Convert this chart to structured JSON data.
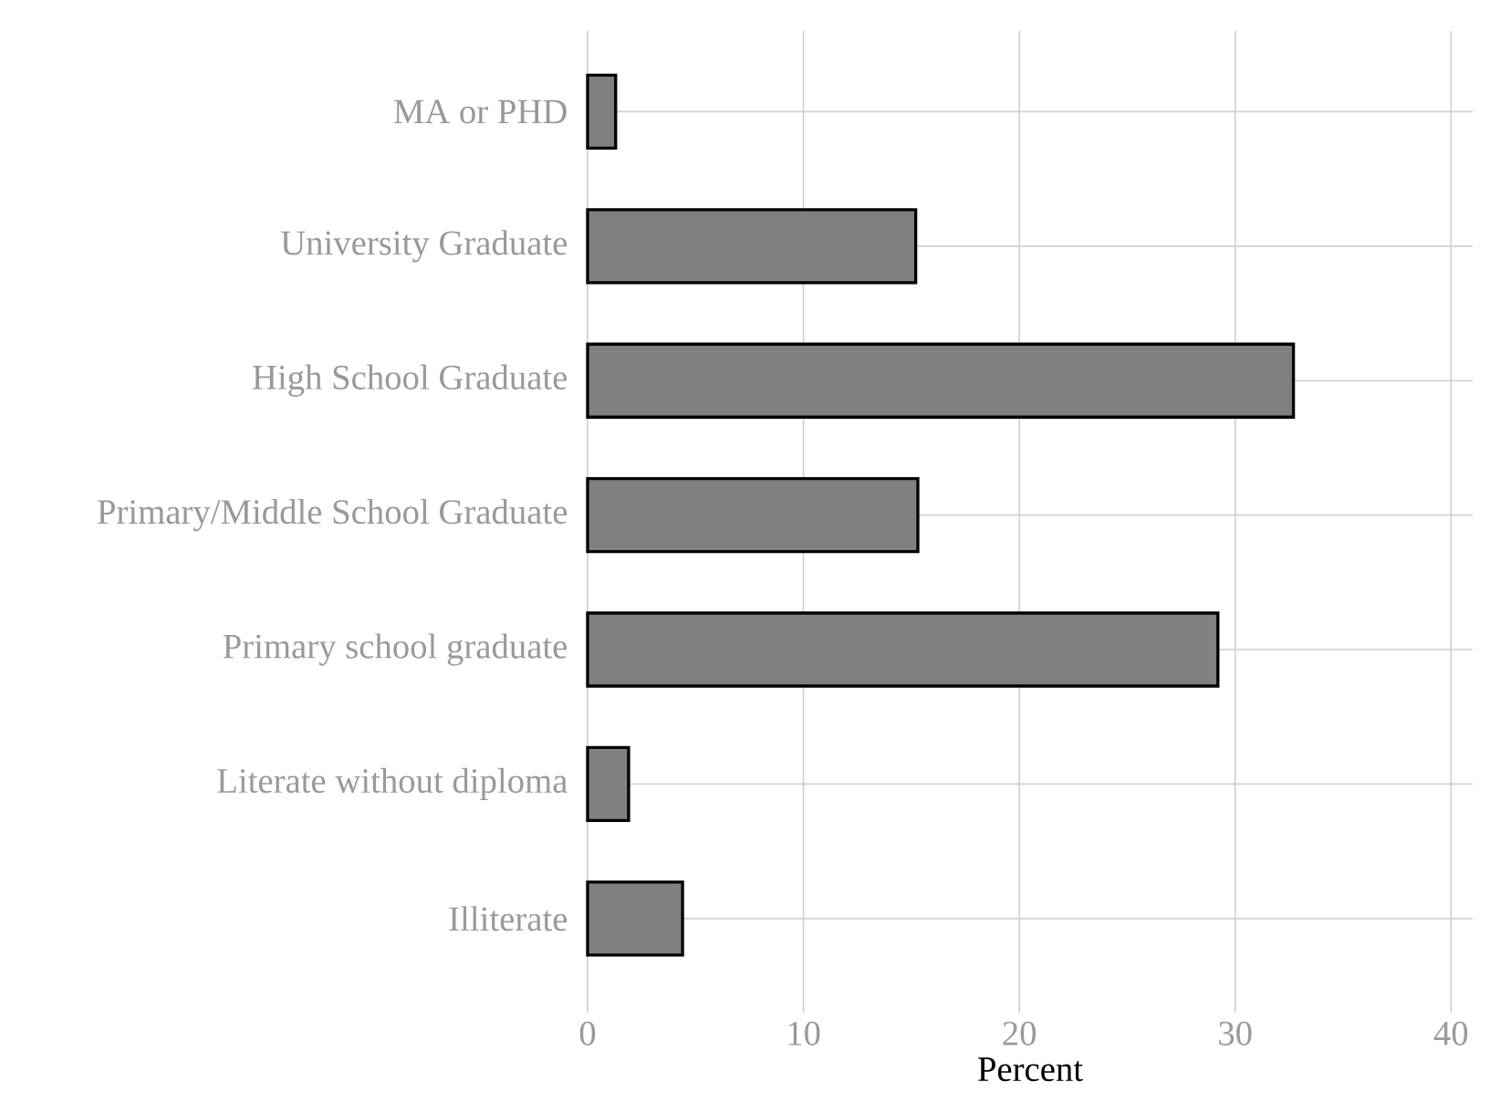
{
  "chart_data": {
    "type": "bar",
    "orientation": "horizontal",
    "xlabel": "Percent",
    "categories": [
      "MA or PHD",
      "University Graduate",
      "High School Graduate",
      "Primary/Middle School Graduate",
      "Primary school graduate",
      "Literate without diploma",
      "Illiterate"
    ],
    "values": [
      1.3,
      15.2,
      32.7,
      15.3,
      29.2,
      1.9,
      4.4
    ],
    "color": "#808080",
    "xlim": [
      0,
      41
    ],
    "xticks": [
      0,
      10,
      20,
      30,
      40
    ],
    "grid": true
  }
}
